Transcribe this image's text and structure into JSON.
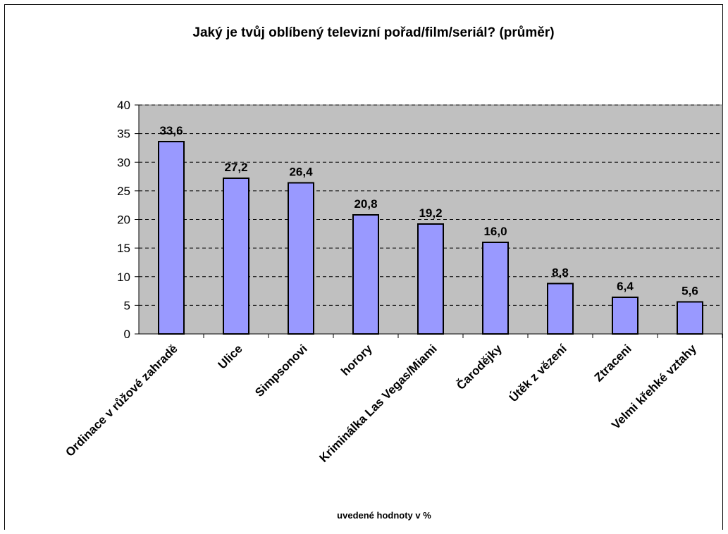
{
  "chart_data": {
    "type": "bar",
    "title": "Jaký je tvůj oblíbený televizní pořad/film/seriál? (průměr)",
    "categories": [
      "Ordinace v růžové zahradě",
      "Ulice",
      "Simpsonovi",
      "horory",
      "Kriminálka Las Vegas/Miami",
      "Čarodějky",
      "Útěk z vězení",
      "Ztraceni",
      "Velmi křehké vztahy"
    ],
    "values": [
      33.6,
      27.2,
      26.4,
      20.8,
      19.2,
      16.0,
      8.8,
      6.4,
      5.6
    ],
    "data_labels": [
      "33,6",
      "27,2",
      "26,4",
      "20,8",
      "19,2",
      "16,0",
      "8,8",
      "6,4",
      "5,6"
    ],
    "ylim": [
      0,
      40
    ],
    "yticks": [
      0,
      5,
      10,
      15,
      20,
      25,
      30,
      35,
      40
    ],
    "grid": true,
    "note": "uvedené hodnoty v %",
    "colors": {
      "plot_background": "#c0c0c0",
      "bar_fill": "#9999ff",
      "bar_stroke": "#000000",
      "gridline": "#000000"
    }
  }
}
